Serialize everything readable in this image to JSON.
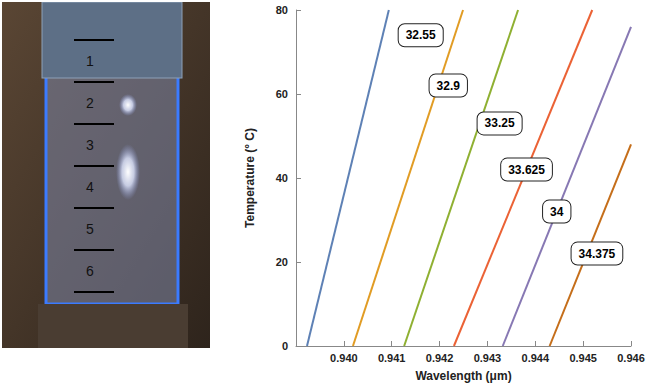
{
  "photo": {
    "labels": [
      "1",
      "2",
      "3",
      "4",
      "5",
      "6"
    ]
  },
  "chart_data": {
    "type": "line",
    "xlabel": "Wavelength (μm)",
    "ylabel": "Temperature (° C)",
    "xlim": [
      0.939,
      0.946
    ],
    "xticks": [
      {
        "value": 0.94,
        "label": "0.940"
      },
      {
        "value": 0.941,
        "label": "0.941"
      },
      {
        "value": 0.942,
        "label": "0.942"
      },
      {
        "value": 0.943,
        "label": "0.943"
      },
      {
        "value": 0.944,
        "label": "0.944"
      },
      {
        "value": 0.945,
        "label": "0.945"
      },
      {
        "value": 0.946,
        "label": "0.946"
      }
    ],
    "ylim": [
      0,
      80
    ],
    "yticks": [
      0,
      20,
      40,
      60,
      80
    ],
    "grid": false,
    "data_labels": true,
    "series": [
      {
        "name": "32.55",
        "color": "#5e81b5",
        "x": [
          0.93923,
          0.94094
        ],
        "y": [
          0,
          80
        ]
      },
      {
        "name": "32.9",
        "color": "#e19c24",
        "x": [
          0.94019,
          0.94249
        ],
        "y": [
          0,
          80
        ]
      },
      {
        "name": "33.25",
        "color": "#8fb032",
        "x": [
          0.94126,
          0.94364
        ],
        "y": [
          0,
          80
        ]
      },
      {
        "name": "33.625",
        "color": "#eb6235",
        "x": [
          0.9423,
          0.94519
        ],
        "y": [
          0,
          80
        ]
      },
      {
        "name": "34",
        "color": "#8778b3",
        "x": [
          0.94332,
          0.946
        ],
        "y": [
          0,
          76
        ]
      },
      {
        "name": "34.375",
        "color": "#c56e1a",
        "x": [
          0.9443,
          0.946
        ],
        "y": [
          0,
          48
        ]
      }
    ]
  }
}
